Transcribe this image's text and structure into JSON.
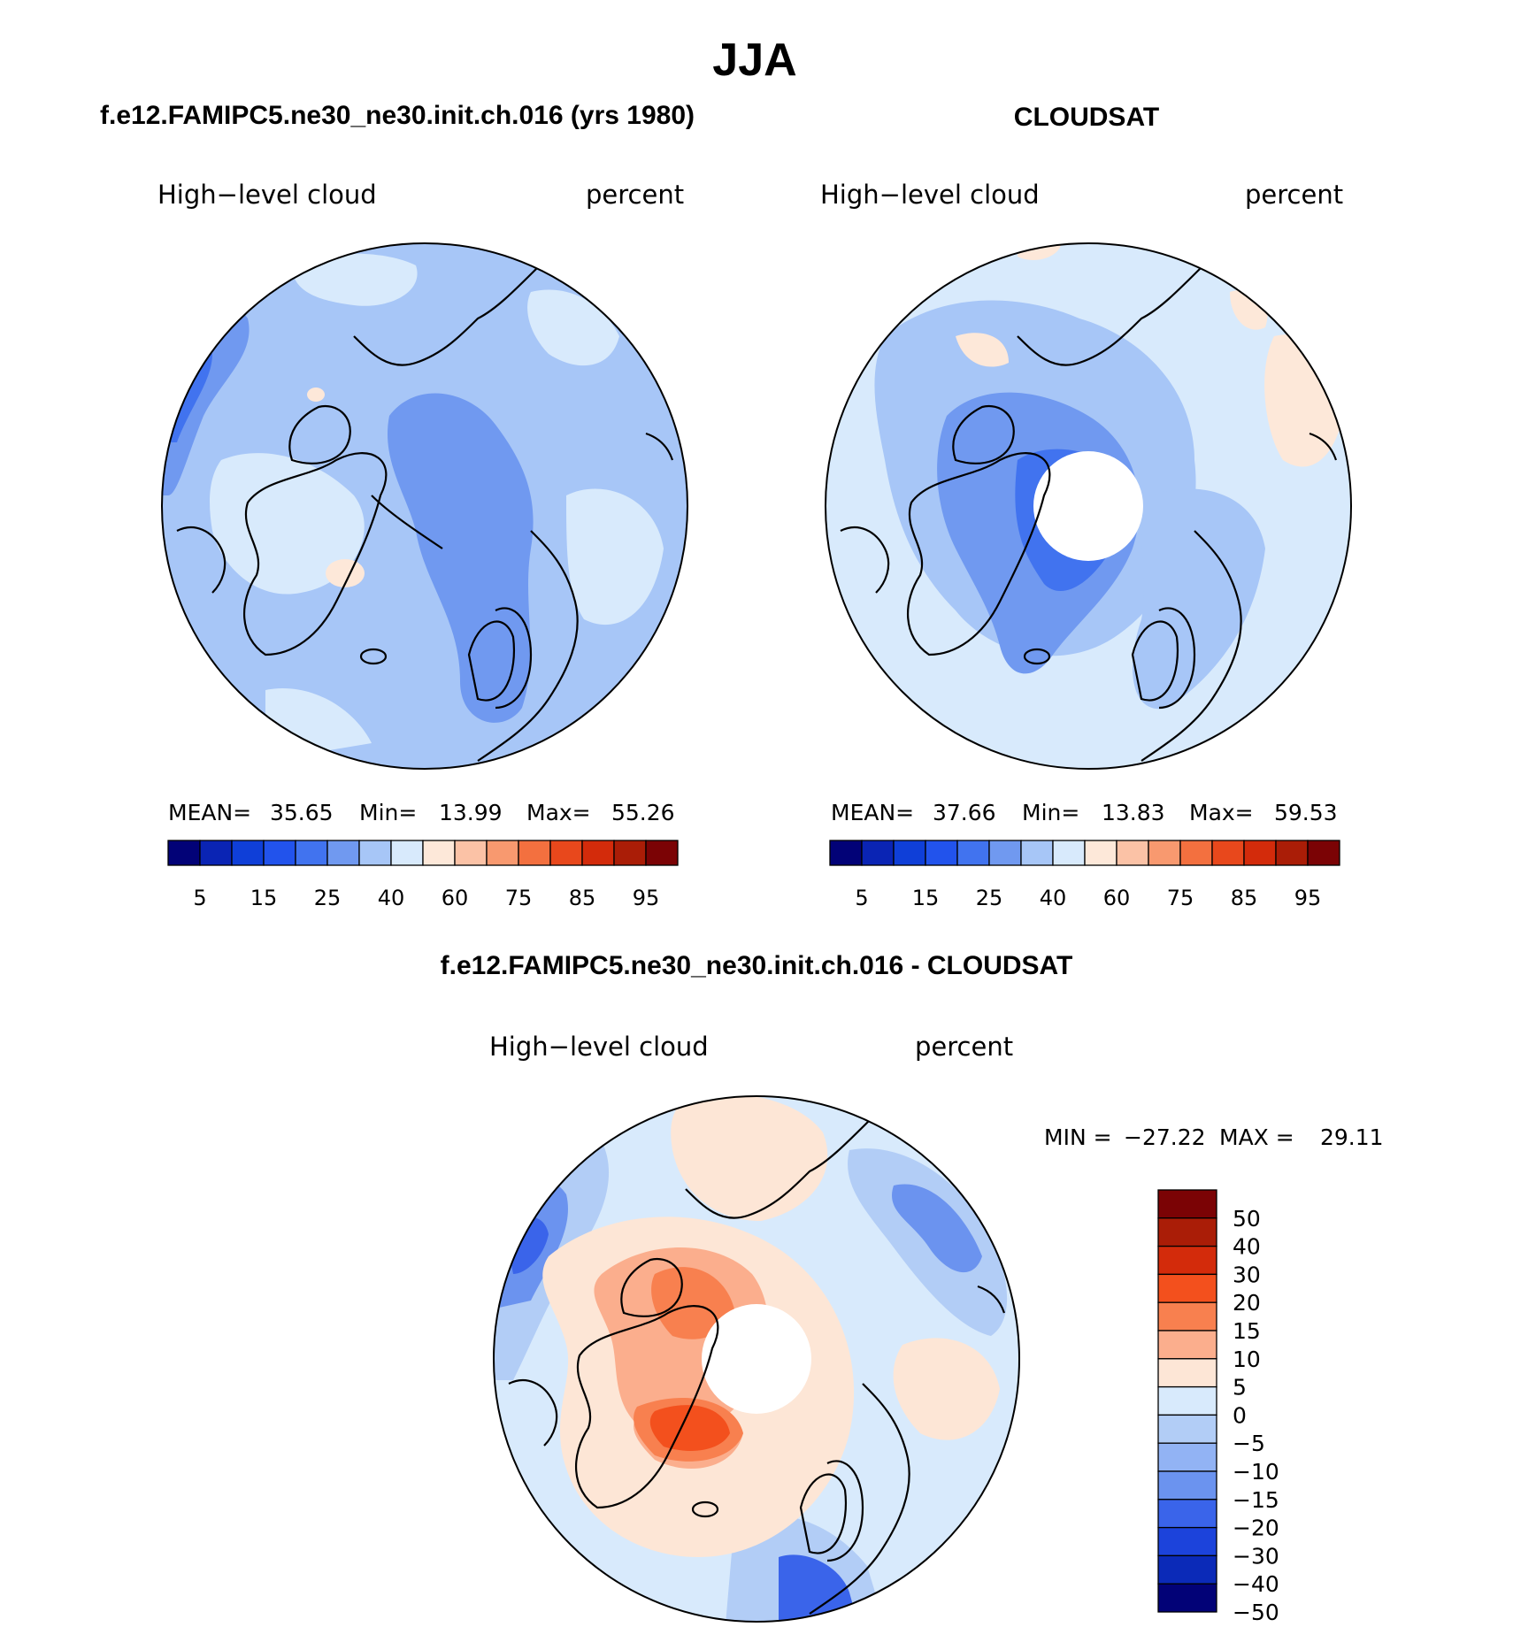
{
  "page": {
    "title": "JJA",
    "bottom_title": "f.e12.FAMIPC5.ne30_ne30.init.ch.016 - CLOUDSAT"
  },
  "chart_data": [
    {
      "type": "heatmap",
      "projection": "north-polar-stereographic",
      "title": "f.e12.FAMIPC5.ne30_ne30.init.ch.016 (yrs 1980)",
      "left_label": "High−level cloud",
      "right_label": "percent",
      "stats": {
        "mean_label": "MEAN=",
        "mean": "35.65",
        "min_label": "Min=",
        "min": "13.99",
        "max_label": "Max=",
        "max": "55.26"
      },
      "colorbar": {
        "orientation": "horizontal",
        "colors": [
          "#020277",
          "#0a24b4",
          "#0f3fd8",
          "#2253ec",
          "#4173ef",
          "#7099f0",
          "#a7c6f7",
          "#d8eafc",
          "#fde8d9",
          "#fbc2a6",
          "#f8996f",
          "#f3703f",
          "#e8481c",
          "#d32b0b",
          "#aa1d07",
          "#7b0305"
        ],
        "tick_labels": [
          "5",
          "15",
          "25",
          "40",
          "60",
          "75",
          "85",
          "95"
        ]
      },
      "regions": [
        {
          "fill": "#a7c6f7",
          "level": "25-40"
        },
        {
          "fill": "#7099f0",
          "level": "15-25"
        },
        {
          "fill": "#d8eafc",
          "level": "40-60"
        },
        {
          "fill": "#4173ef",
          "level": "15"
        },
        {
          "fill": "#fde8d9",
          "level": "60"
        }
      ]
    },
    {
      "type": "heatmap",
      "projection": "north-polar-stereographic",
      "title": "CLOUDSAT",
      "left_label": "High−level cloud",
      "right_label": "percent",
      "stats": {
        "mean_label": "MEAN=",
        "mean": "37.66",
        "min_label": "Min=",
        "min": "13.83",
        "max_label": "Max=",
        "max": "59.53"
      },
      "colorbar": {
        "orientation": "horizontal",
        "colors": [
          "#020277",
          "#0a24b4",
          "#0f3fd8",
          "#2253ec",
          "#4173ef",
          "#7099f0",
          "#a7c6f7",
          "#d8eafc",
          "#fde8d9",
          "#fbc2a6",
          "#f8996f",
          "#f3703f",
          "#e8481c",
          "#d32b0b",
          "#aa1d07",
          "#7b0305"
        ],
        "tick_labels": [
          "5",
          "15",
          "25",
          "40",
          "60",
          "75",
          "85",
          "95"
        ]
      },
      "polar_gap": true
    },
    {
      "type": "heatmap",
      "projection": "north-polar-stereographic",
      "title": "f.e12.FAMIPC5.ne30_ne30.init.ch.016 - CLOUDSAT",
      "left_label": "High−level cloud",
      "right_label": "percent",
      "minmax": {
        "min_label": "MIN =",
        "min": "−27.22",
        "max_label": "MAX =",
        "max": "29.11"
      },
      "colorbar": {
        "orientation": "vertical",
        "colors": [
          "#7b0305",
          "#aa1d07",
          "#d32b0b",
          "#f3501d",
          "#f8804f",
          "#fbae8d",
          "#fde6d6",
          "#d8eafc",
          "#b2cdf6",
          "#92b3f4",
          "#6b93ef",
          "#3a64ea",
          "#1c43db",
          "#0b2ab8",
          "#020277"
        ],
        "tick_labels": [
          "50",
          "40",
          "30",
          "20",
          "15",
          "10",
          "5",
          "0",
          "−5",
          "−10",
          "−15",
          "−20",
          "−30",
          "−40",
          "−50"
        ]
      },
      "polar_gap": true
    }
  ]
}
